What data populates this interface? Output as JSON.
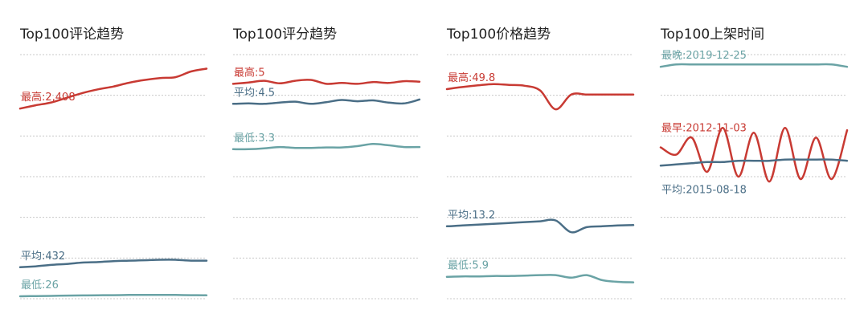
{
  "colors": {
    "max": "#c83a33",
    "avg": "#4a6e86",
    "min": "#6aa3a5",
    "grid": "#c8c8c8"
  },
  "chart_data": [
    {
      "type": "line",
      "title": "Top100评论趋势",
      "ylim": [
        0,
        2600
      ],
      "grid": true,
      "series": [
        {
          "name": "最高",
          "label": "最高:2,408",
          "color": "max",
          "values": [
            2025,
            2060,
            2090,
            2140,
            2190,
            2230,
            2260,
            2300,
            2330,
            2350,
            2360,
            2420,
            2450
          ]
        },
        {
          "name": "平均",
          "label": "平均:432",
          "color": "avg",
          "values": [
            335,
            345,
            360,
            370,
            385,
            390,
            400,
            405,
            410,
            415,
            415,
            405,
            405
          ]
        },
        {
          "name": "最低",
          "label": "最低:26",
          "color": "min",
          "values": [
            26,
            28,
            30,
            33,
            35,
            37,
            38,
            40,
            40,
            40,
            40,
            38,
            37
          ]
        }
      ]
    },
    {
      "type": "line",
      "title": "Top100评分趋势",
      "ylim": [
        0,
        5.6
      ],
      "grid": true,
      "series": [
        {
          "name": "最高",
          "label": "最高:5",
          "color": "max",
          "values": [
            4.93,
            4.96,
            5.0,
            4.94,
            5.0,
            5.02,
            4.93,
            4.95,
            4.93,
            4.97,
            4.95,
            4.99,
            4.98
          ]
        },
        {
          "name": "平均",
          "label": "平均:4.5",
          "color": "avg",
          "values": [
            4.47,
            4.48,
            4.47,
            4.5,
            4.52,
            4.47,
            4.51,
            4.56,
            4.53,
            4.55,
            4.5,
            4.48,
            4.57
          ]
        },
        {
          "name": "最低",
          "label": "最低:3.3",
          "color": "min",
          "values": [
            3.43,
            3.43,
            3.45,
            3.48,
            3.46,
            3.46,
            3.47,
            3.47,
            3.5,
            3.55,
            3.52,
            3.48,
            3.48
          ]
        }
      ]
    },
    {
      "type": "line",
      "title": "Top100价格趋势",
      "ylim": [
        0,
        58
      ],
      "grid": true,
      "series": [
        {
          "name": "最高",
          "label": "最高:49.8",
          "color": "max",
          "values": [
            49.8,
            50.3,
            50.7,
            51.0,
            50.8,
            50.6,
            49.5,
            45.0,
            48.5,
            48.5,
            48.5,
            48.5,
            48.5
          ]
        },
        {
          "name": "平均",
          "label": "平均:13.2",
          "color": "avg",
          "values": [
            17.2,
            17.4,
            17.6,
            17.8,
            18.0,
            18.2,
            18.4,
            18.6,
            15.8,
            17.0,
            17.2,
            17.4,
            17.5
          ]
        },
        {
          "name": "最低",
          "label": "最低:5.9",
          "color": "min",
          "values": [
            5.2,
            5.3,
            5.3,
            5.4,
            5.4,
            5.5,
            5.6,
            5.6,
            5.0,
            5.6,
            4.4,
            4.0,
            3.9
          ]
        }
      ]
    },
    {
      "type": "line",
      "title": "Top100上架时间",
      "grid": true,
      "series": [
        {
          "name": "最晚",
          "label": "最晚:2019-12-25",
          "color": "min",
          "values": [
            0.95,
            0.96,
            0.96,
            0.96,
            0.96,
            0.96,
            0.96,
            0.96,
            0.96,
            0.96,
            0.96,
            0.96,
            0.95
          ]
        },
        {
          "name": "最早",
          "label": "最早:2012-11-03",
          "color": "max",
          "values": [
            0.62,
            0.59,
            0.66,
            0.52,
            0.7,
            0.5,
            0.68,
            0.48,
            0.7,
            0.49,
            0.66,
            0.49,
            0.69
          ]
        },
        {
          "name": "平均",
          "label": "平均:2015-08-18",
          "color": "avg",
          "values": [
            0.545,
            0.55,
            0.555,
            0.56,
            0.56,
            0.565,
            0.565,
            0.565,
            0.57,
            0.57,
            0.57,
            0.57,
            0.565
          ]
        }
      ]
    }
  ]
}
